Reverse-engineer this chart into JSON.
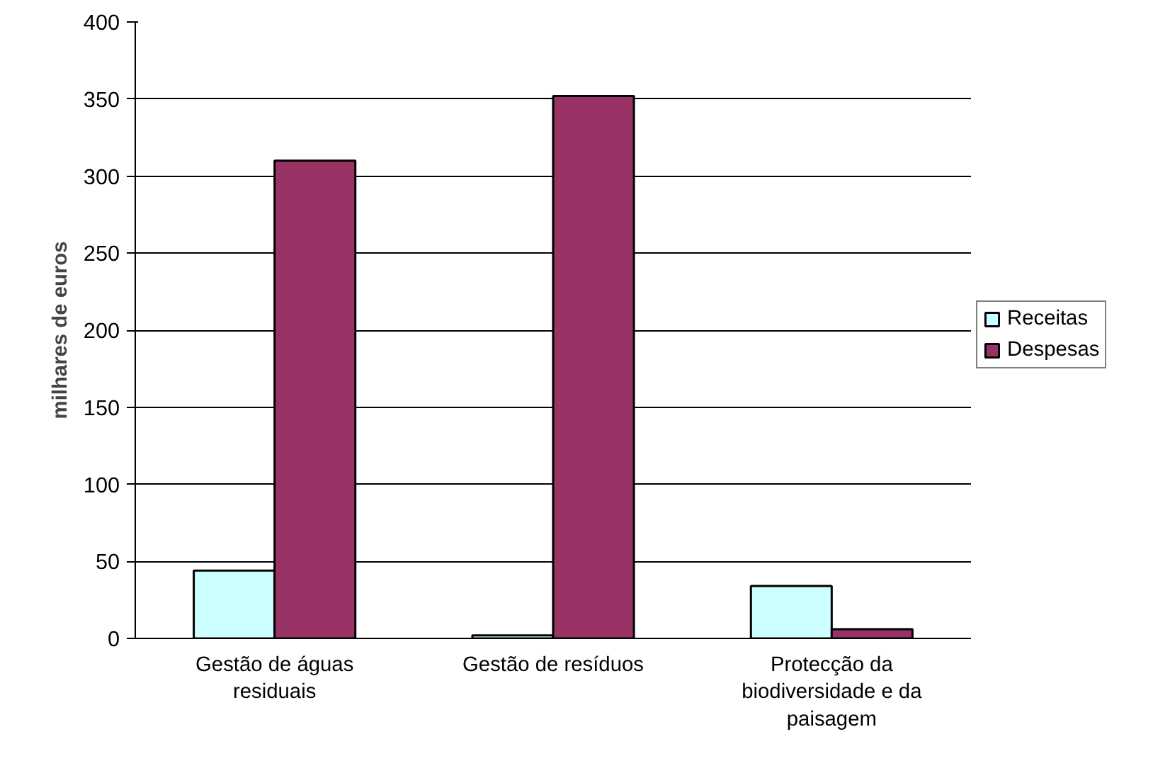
{
  "chart_data": {
    "type": "bar",
    "ylabel": "milhares de euros",
    "categories": [
      "Gestão de águas residuais",
      "Gestão de resíduos",
      "Protecção da biodiversidade e da paisagem"
    ],
    "series": [
      {
        "name": "Receitas",
        "color": "#ccffff",
        "values": [
          44,
          2,
          34
        ]
      },
      {
        "name": "Despesas",
        "color": "#993366",
        "values": [
          310,
          352,
          6
        ]
      }
    ],
    "ylim": [
      0,
      400
    ],
    "yticks": [
      0,
      50,
      100,
      150,
      200,
      250,
      300,
      350,
      400
    ],
    "grid": "y",
    "legend": "right"
  }
}
